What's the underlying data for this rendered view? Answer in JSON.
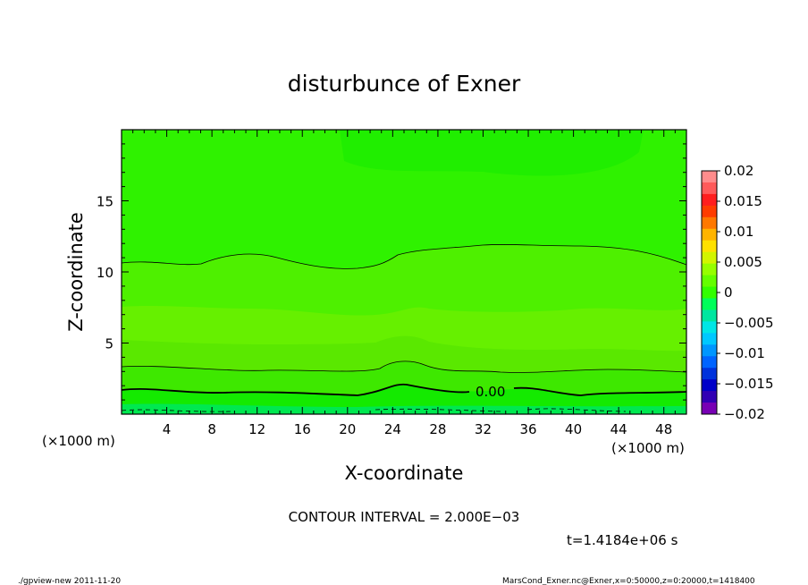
{
  "chart_data": {
    "type": "heatmap",
    "title": "disturbunce of Exner",
    "xlabel": "X-coordinate",
    "ylabel": "Z-coordinate",
    "x_unit": "(×1000 m)",
    "y_unit": "(×1000 m)",
    "xlim": [
      0,
      50
    ],
    "ylim": [
      0,
      20
    ],
    "x_ticks": [
      4,
      8,
      12,
      16,
      20,
      24,
      28,
      32,
      36,
      40,
      44,
      48
    ],
    "y_ticks": [
      5,
      10,
      15
    ],
    "colorbar": {
      "ticks": [
        0.02,
        0.015,
        0.01,
        0.005,
        0,
        -0.005,
        -0.01,
        -0.015,
        -0.02
      ],
      "tick_labels": [
        "0.02",
        "0.015",
        "0.01",
        "0.005",
        "0",
        "−0.005",
        "−0.01",
        "−0.015",
        "−0.02"
      ],
      "range": [
        -0.02,
        0.02
      ],
      "colors_top_to_bottom": [
        "#ff8c8c",
        "#ff5a5a",
        "#ff1e1e",
        "#ff3c00",
        "#ff7800",
        "#ffb400",
        "#ffe100",
        "#d2f500",
        "#96ff00",
        "#64ff00",
        "#32ff00",
        "#00ff5a",
        "#00e6a0",
        "#00e6e6",
        "#00c8ff",
        "#0096ff",
        "#0064ff",
        "#0032dc",
        "#0000c8",
        "#3200b4",
        "#7800b4"
      ]
    },
    "contour_labels": [
      {
        "x": 30.5,
        "z": 1.6,
        "text": "0.00"
      }
    ],
    "contour_interval": "CONTOUR INTERVAL = 2.000E−03",
    "time": "t=1.4184e+06 s"
  },
  "footer": {
    "left": "./gpview-new   2011-11-20",
    "right": "MarsCond_Exner.nc@Exner,x=0:50000,z=0:20000,t=1418400"
  }
}
